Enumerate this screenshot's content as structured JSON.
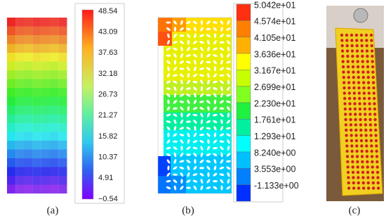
{
  "panels": [
    {
      "caption": "(a)",
      "colorbar": [
        "48.54",
        "43.09",
        "37.63",
        "32.18",
        "26.73",
        "21.27",
        "15.82",
        "10.37",
        "4.91",
        "−0.54"
      ]
    },
    {
      "caption": "(b)",
      "colorbar": [
        "5.042e+01",
        "4.574e+01",
        "4.105e+01",
        "3.636e+01",
        "3.167e+01",
        "2.699e+01",
        "2.230e+01",
        "1.761e+01",
        "1.293e+01",
        "8.240e+00",
        "3.553e+00",
        "-1.133e+00"
      ]
    },
    {
      "caption": "(c)"
    }
  ]
}
